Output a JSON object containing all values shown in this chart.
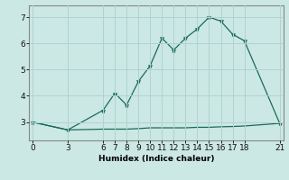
{
  "xlabel": "Humidex (Indice chaleur)",
  "bg_color": "#cce8e4",
  "line_color": "#1a6b5a",
  "grid_color": "#aed4cf",
  "x_ticks": [
    0,
    3,
    6,
    7,
    8,
    9,
    10,
    11,
    12,
    13,
    14,
    15,
    16,
    17,
    18,
    21
  ],
  "ylim": [
    2.3,
    7.45
  ],
  "xlim": [
    -0.3,
    21.3
  ],
  "y_ticks": [
    3,
    4,
    5,
    6,
    7
  ],
  "line1_x": [
    0,
    3,
    6,
    7,
    8,
    9,
    10,
    11,
    12,
    13,
    14,
    15,
    16,
    17,
    18,
    21
  ],
  "line1_y": [
    3.0,
    2.7,
    3.45,
    4.1,
    3.65,
    4.55,
    5.15,
    6.2,
    5.75,
    6.2,
    6.55,
    7.0,
    6.85,
    6.35,
    6.1,
    2.95
  ],
  "line2_x": [
    0,
    3,
    6,
    7,
    8,
    9,
    10,
    11,
    12,
    13,
    14,
    15,
    16,
    17,
    18,
    21
  ],
  "line2_y": [
    3.0,
    2.7,
    2.73,
    2.73,
    2.73,
    2.75,
    2.78,
    2.78,
    2.78,
    2.78,
    2.8,
    2.8,
    2.82,
    2.83,
    2.85,
    2.95
  ],
  "xlabel_fontsize": 6.5,
  "tick_fontsize": 6.5
}
